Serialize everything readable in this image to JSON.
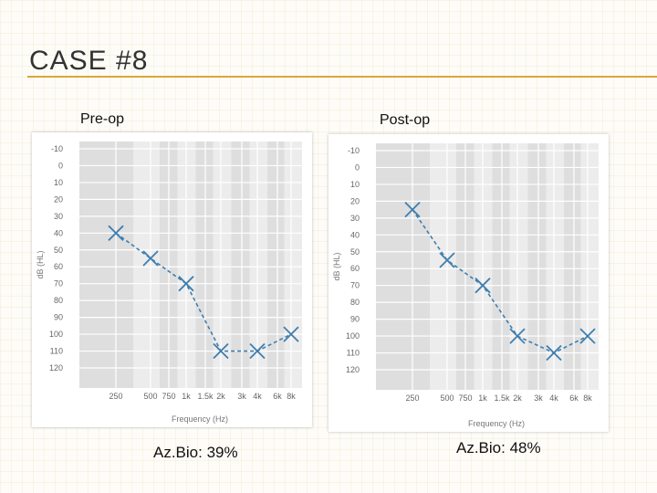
{
  "slide": {
    "title": "CASE #8",
    "colors": {
      "accent": "#d9a837",
      "marker": "#3f7eae",
      "plot_bg": "#e1e1e1"
    }
  },
  "chart_data": [
    {
      "type": "line",
      "title": "Pre-op",
      "caption": "Az.Bio: 39%",
      "xlabel": "Frequency (Hz)",
      "ylabel": "dB (HL)",
      "x_ticks": [
        "250",
        "500",
        "750",
        "1k",
        "1.5k",
        "2k",
        "3k",
        "4k",
        "6k",
        "8k"
      ],
      "y_ticks": [
        "-10",
        "0",
        "10",
        "20",
        "30",
        "40",
        "50",
        "60",
        "70",
        "80",
        "90",
        "100",
        "110",
        "120"
      ],
      "ylim": [
        -10,
        120
      ],
      "y_inverted": true,
      "series": [
        {
          "marker": "x",
          "x": [
            "250",
            "500",
            "1k",
            "2k",
            "4k",
            "8k"
          ],
          "values": [
            40,
            55,
            70,
            110,
            110,
            100
          ]
        }
      ]
    },
    {
      "type": "line",
      "title": "Post-op",
      "caption": "Az.Bio: 48%",
      "xlabel": "Frequency (Hz)",
      "ylabel": "dB (HL)",
      "x_ticks": [
        "250",
        "500",
        "750",
        "1k",
        "1.5k",
        "2k",
        "3k",
        "4k",
        "6k",
        "8k"
      ],
      "y_ticks": [
        "-10",
        "0",
        "10",
        "20",
        "30",
        "40",
        "50",
        "60",
        "70",
        "80",
        "90",
        "100",
        "110",
        "120"
      ],
      "ylim": [
        -10,
        120
      ],
      "y_inverted": true,
      "series": [
        {
          "marker": "x",
          "x": [
            "250",
            "500",
            "1k",
            "2k",
            "4k",
            "8k"
          ],
          "values": [
            25,
            55,
            70,
            100,
            110,
            100
          ]
        }
      ]
    }
  ]
}
